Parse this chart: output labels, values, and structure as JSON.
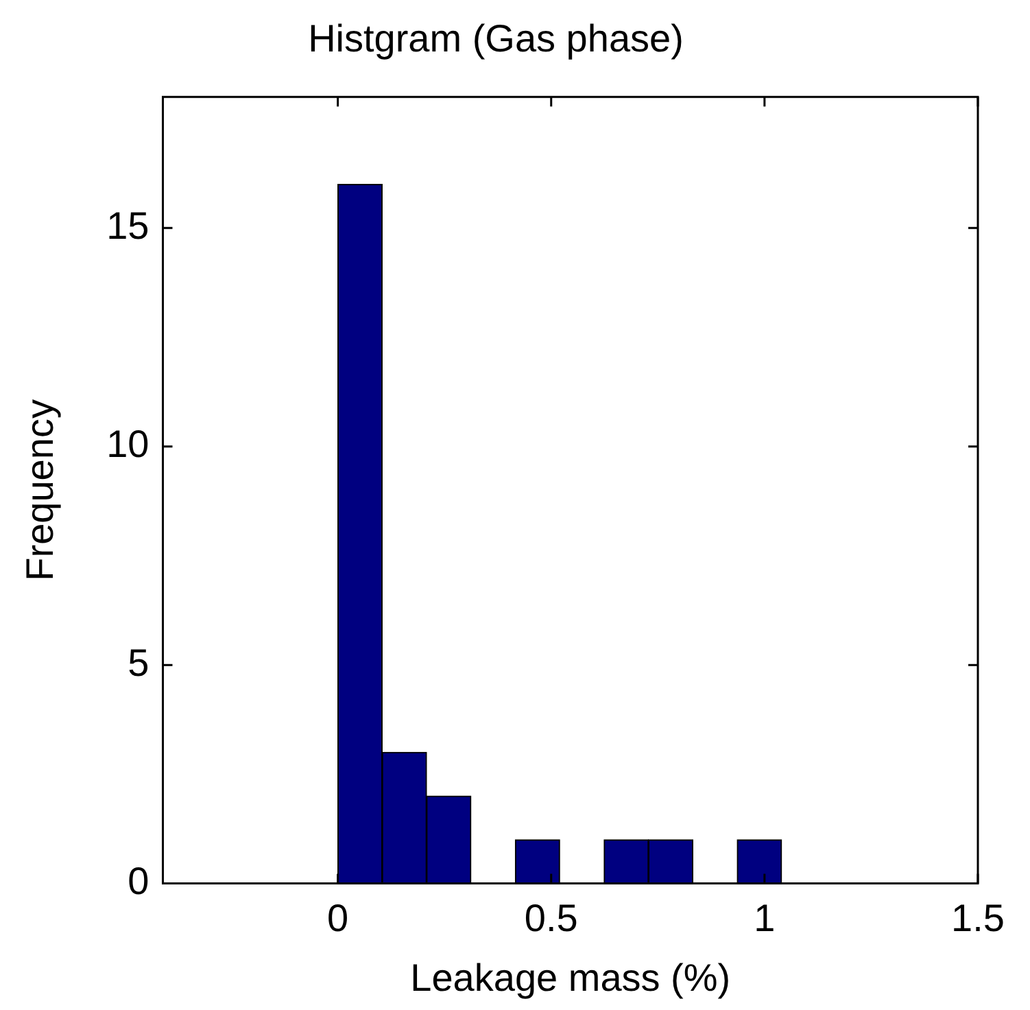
{
  "chart_data": {
    "type": "histogram",
    "title": "Histgram (Gas phase)",
    "xlabel": "Leakage mass (%)",
    "ylabel": "Frequency",
    "bins": [
      0,
      0.104,
      0.208,
      0.312,
      0.416,
      0.52,
      0.624,
      0.728,
      0.832,
      0.936,
      1.04
    ],
    "values": [
      16,
      3,
      2,
      0,
      1,
      0,
      1,
      1,
      0,
      1
    ],
    "color": "#000080",
    "xlim": [
      -0.41,
      1.5
    ],
    "xticks": [
      0,
      0.5,
      1,
      1.5
    ],
    "ylim": [
      0,
      18
    ],
    "yticks": [
      0,
      5,
      10,
      15
    ]
  }
}
